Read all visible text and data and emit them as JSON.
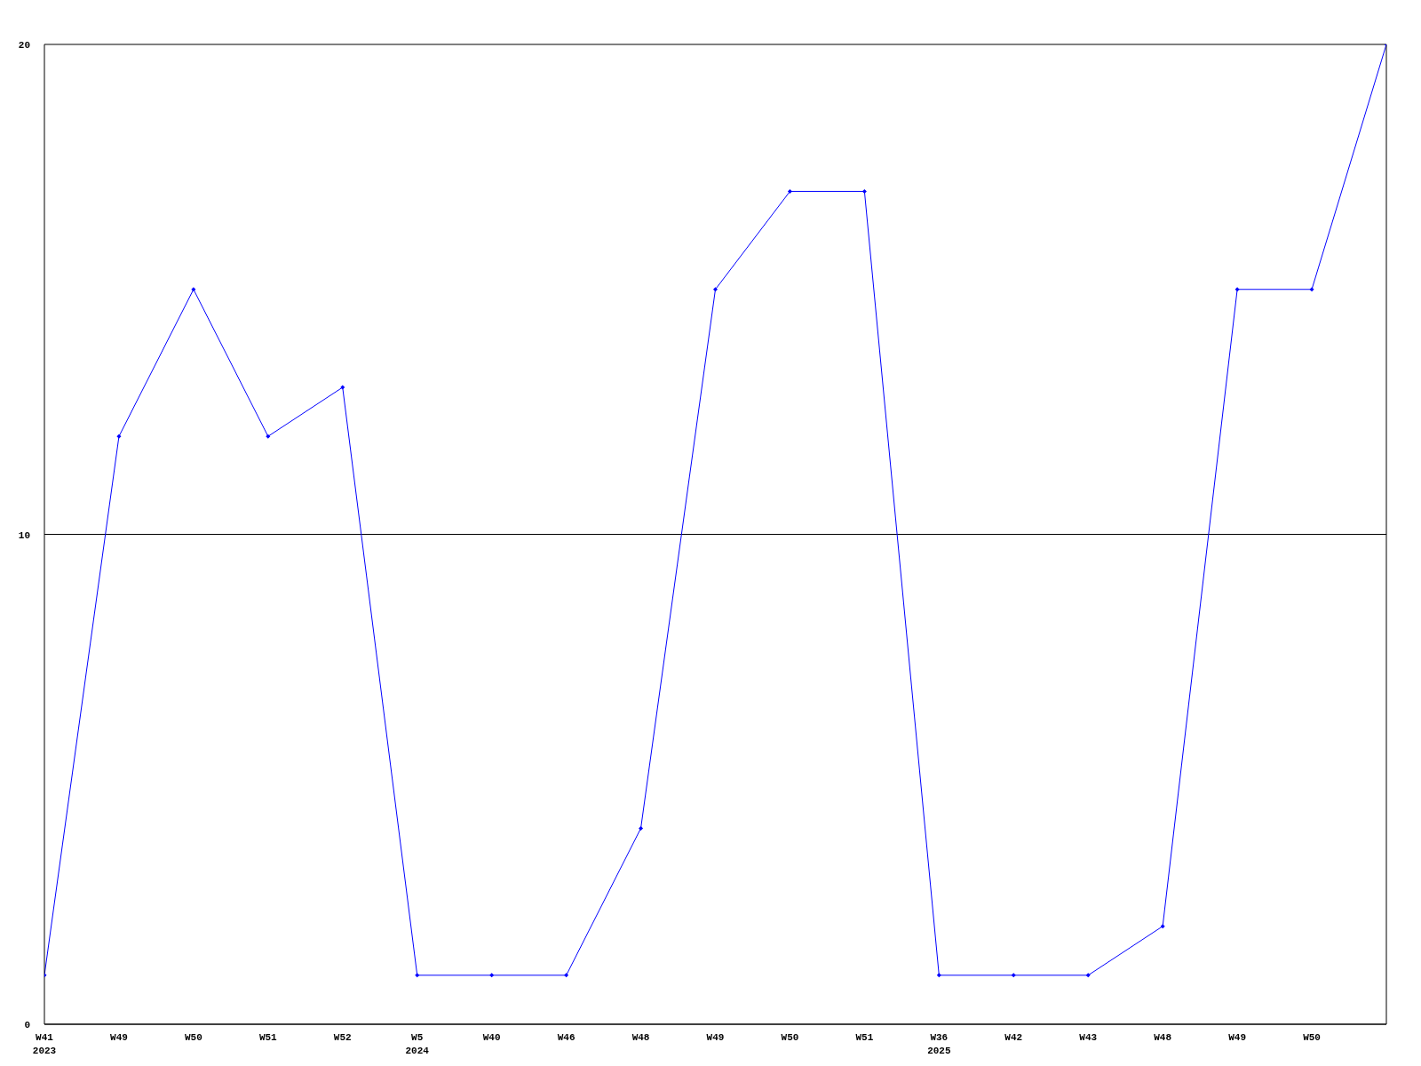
{
  "chart_data": {
    "type": "line",
    "categories": [
      "W41\n2023",
      "W49",
      "W50",
      "W51",
      "W52",
      "W5\n2024",
      "W40",
      "W46",
      "W48",
      "W49",
      "W50",
      "W51",
      "W36\n2025",
      "W42",
      "W43",
      "W48",
      "W49",
      "W50",
      null
    ],
    "series": [
      {
        "color": "#0000ff",
        "values": [
          1,
          12,
          15,
          12,
          13,
          1,
          1,
          1,
          4,
          15,
          17,
          17,
          1,
          1,
          1,
          2,
          15,
          15,
          20
        ]
      }
    ],
    "ylim": [
      0,
      20
    ],
    "yticks": [
      0,
      10,
      20
    ],
    "grid": "y",
    "marker": "diamond",
    "line_style": "solid"
  }
}
